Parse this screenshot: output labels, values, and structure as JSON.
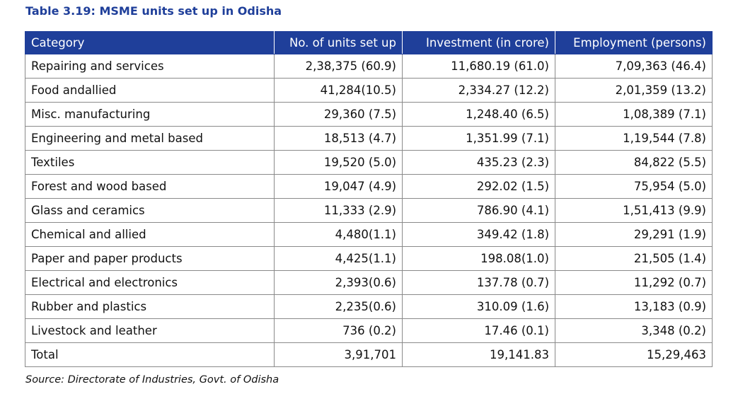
{
  "title": "Table 3.19: MSME units set up in Odisha",
  "colors": {
    "title": "#1f3f9a",
    "header_bg": "#1f3f9a",
    "header_text": "#ffffff",
    "border": "#8a8a8a"
  },
  "table": {
    "headers": [
      "Category",
      "No. of units set up",
      "Investment (in crore)",
      "Employment (persons)"
    ],
    "rows": [
      [
        "Repairing and services",
        "2,38,375 (60.9)",
        "11,680.19 (61.0)",
        "7,09,363 (46.4)"
      ],
      [
        "Food andallied",
        "41,284(10.5)",
        "2,334.27 (12.2)",
        "2,01,359 (13.2)"
      ],
      [
        "Misc. manufacturing",
        "29,360 (7.5)",
        "1,248.40 (6.5)",
        "1,08,389 (7.1)"
      ],
      [
        "Engineering and metal based",
        "18,513 (4.7)",
        "1,351.99 (7.1)",
        "1,19,544 (7.8)"
      ],
      [
        "Textiles",
        "19,520 (5.0)",
        "435.23 (2.3)",
        "84,822 (5.5)"
      ],
      [
        "Forest and wood based",
        "19,047 (4.9)",
        "292.02 (1.5)",
        "75,954 (5.0)"
      ],
      [
        "Glass and ceramics",
        "11,333 (2.9)",
        "786.90 (4.1)",
        "1,51,413 (9.9)"
      ],
      [
        "Chemical and allied",
        "4,480(1.1)",
        "349.42 (1.8)",
        "29,291 (1.9)"
      ],
      [
        "Paper and paper products",
        "4,425(1.1)",
        "198.08(1.0)",
        "21,505 (1.4)"
      ],
      [
        "Electrical and electronics",
        "2,393(0.6)",
        "137.78 (0.7)",
        "11,292 (0.7)"
      ],
      [
        "Rubber and plastics",
        "2,235(0.6)",
        "310.09 (1.6)",
        "13,183 (0.9)"
      ],
      [
        "Livestock and leather",
        "736 (0.2)",
        "17.46 (0.1)",
        "3,348 (0.2)"
      ],
      [
        "Total",
        "3,91,701",
        "19,141.83",
        "15,29,463"
      ]
    ]
  },
  "source": "Source: Directorate of Industries, Govt. of Odisha"
}
